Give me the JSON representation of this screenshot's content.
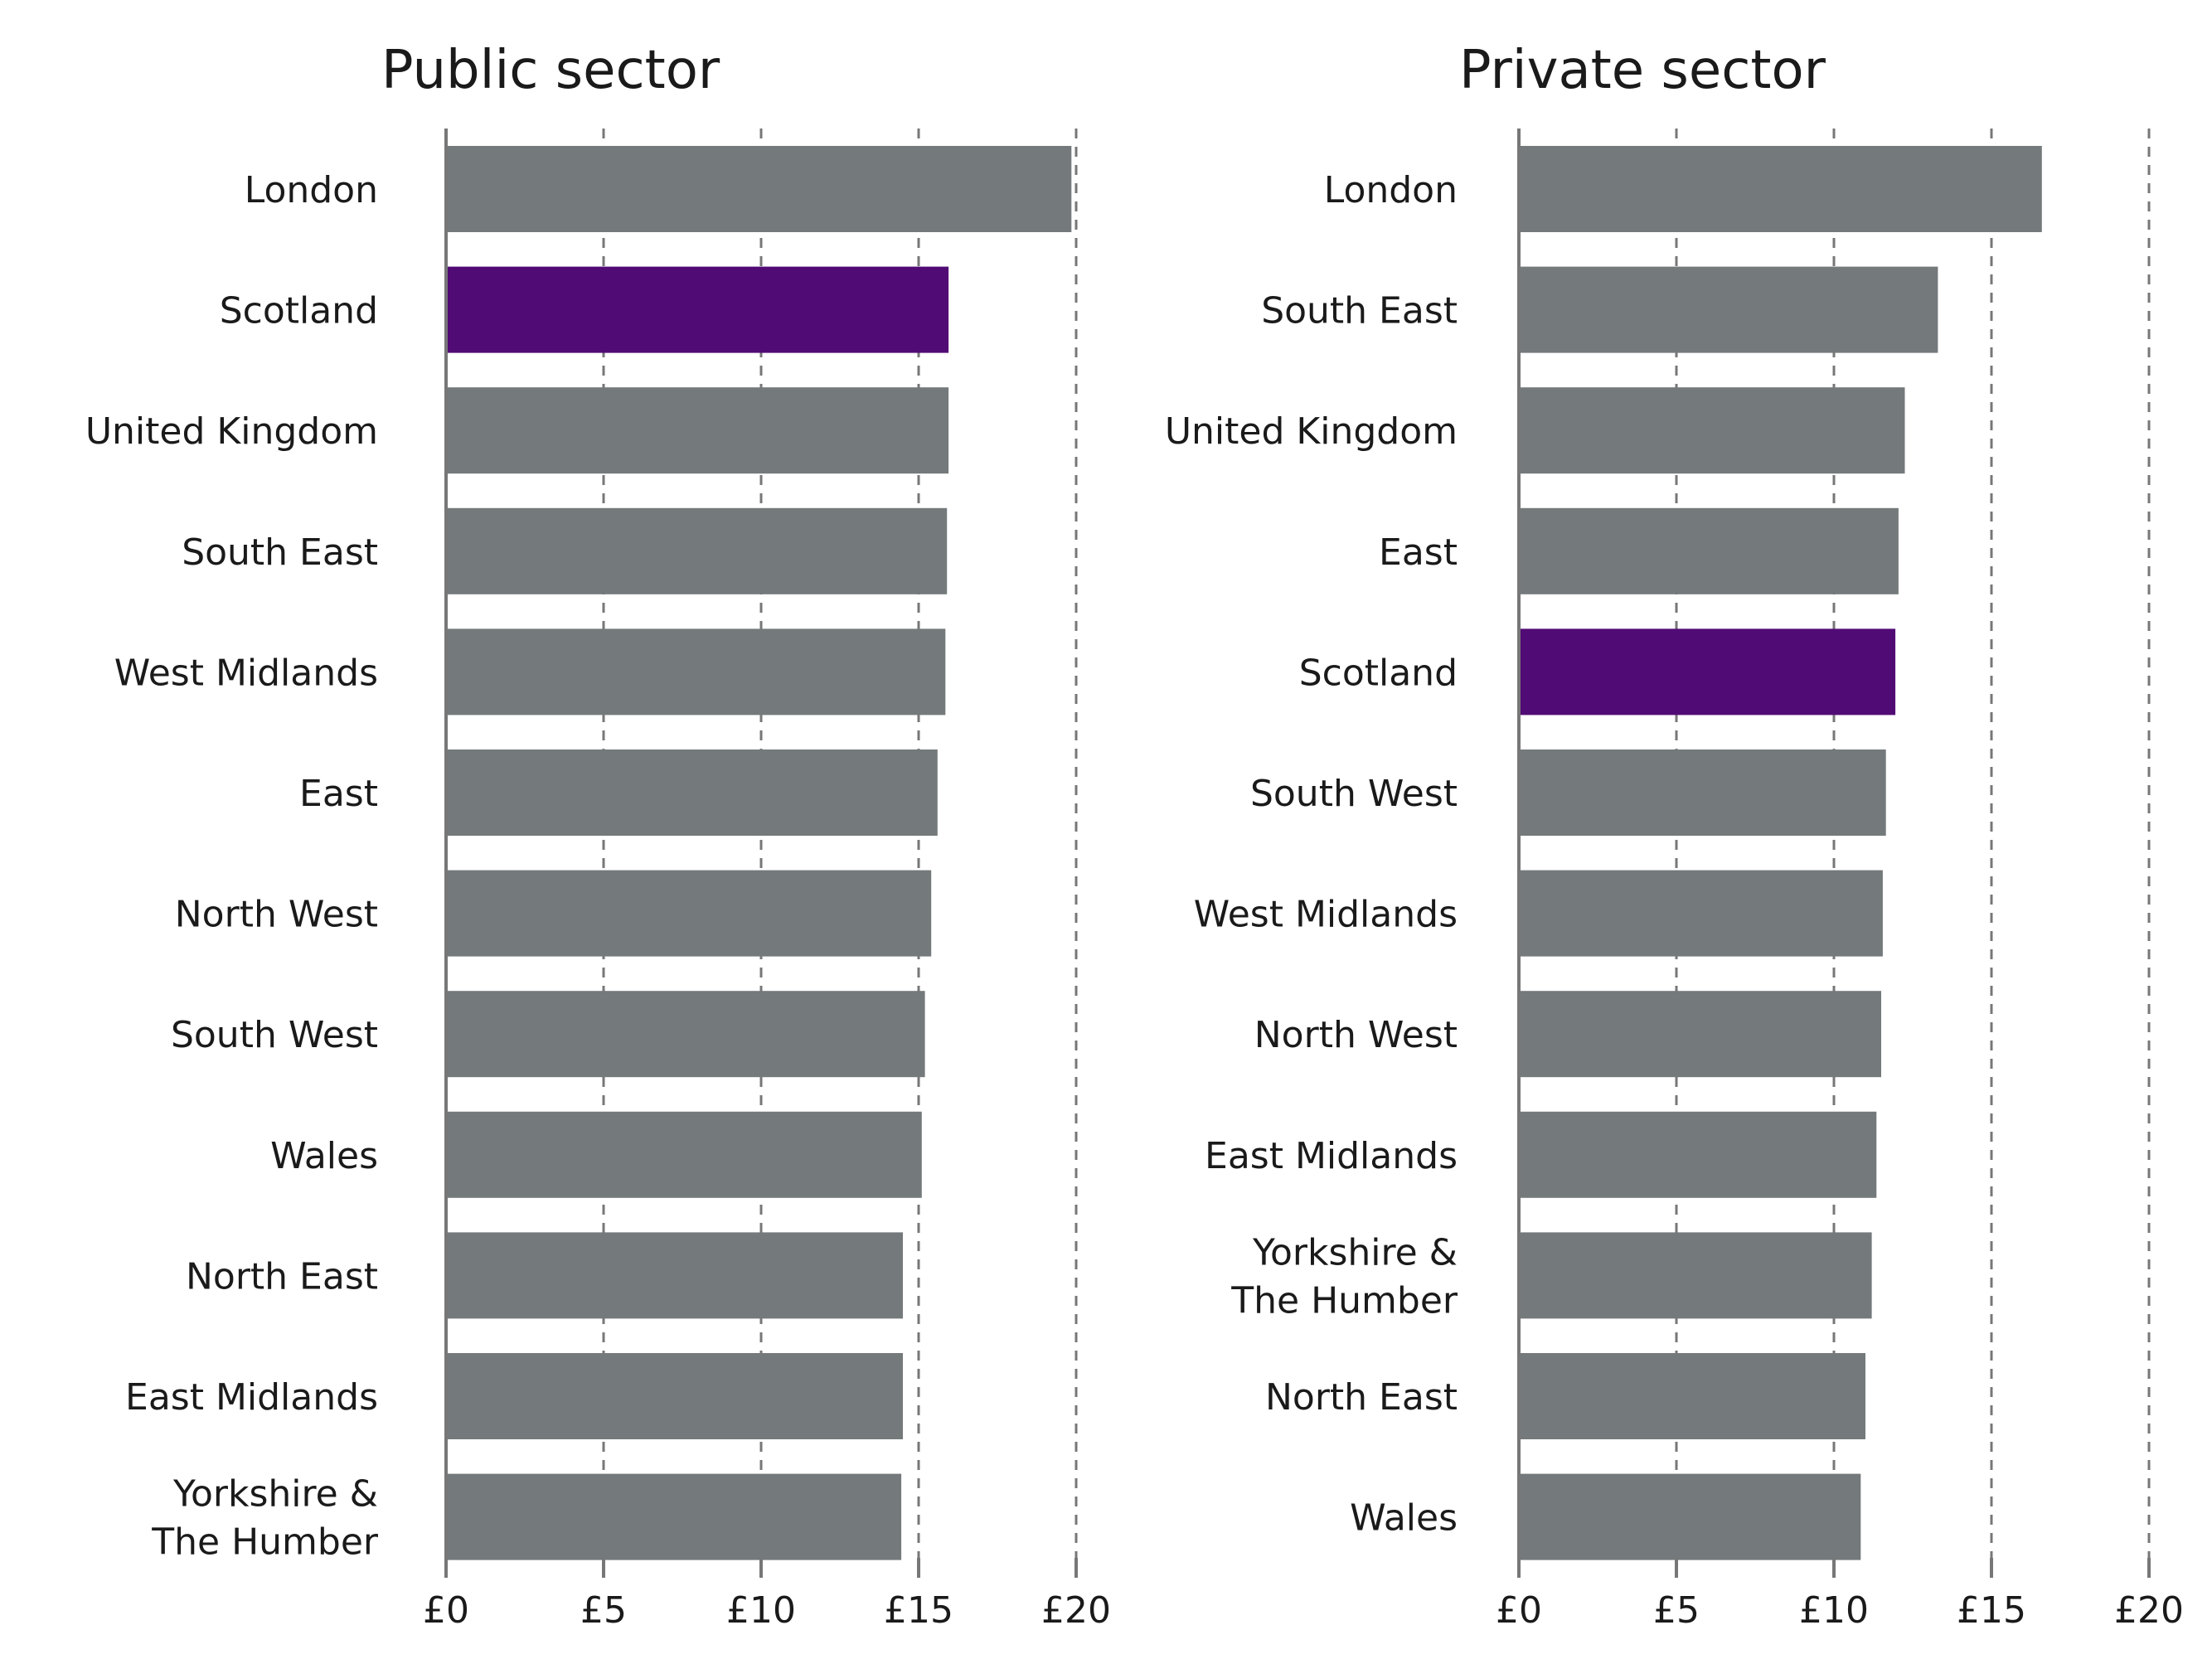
{
  "colors": {
    "bar_default": "#74797b",
    "bar_highlight": "#510b74",
    "grid": "#777777",
    "text": "#1a1a1a"
  },
  "chart_data": [
    {
      "type": "bar",
      "orientation": "horizontal",
      "title": "Public sector",
      "xlabel": "",
      "ylabel": "",
      "xlim": [
        0,
        20
      ],
      "x_ticks": [
        0,
        5,
        10,
        15,
        20
      ],
      "x_tick_labels": [
        "£0",
        "£5",
        "£10",
        "£15",
        "£20"
      ],
      "grid": true,
      "highlight": "Scotland",
      "categories": [
        [
          "London"
        ],
        [
          "Scotland"
        ],
        [
          "United Kingdom"
        ],
        [
          "South East"
        ],
        [
          "West Midlands"
        ],
        [
          "East"
        ],
        [
          "North West"
        ],
        [
          "South West"
        ],
        [
          "Wales"
        ],
        [
          "North East"
        ],
        [
          "East Midlands"
        ],
        [
          "Yorkshire &",
          "The Humber"
        ]
      ],
      "values": [
        19.85,
        15.95,
        15.95,
        15.9,
        15.85,
        15.6,
        15.4,
        15.2,
        15.1,
        14.5,
        14.5,
        14.45
      ]
    },
    {
      "type": "bar",
      "orientation": "horizontal",
      "title": "Private sector",
      "xlabel": "",
      "ylabel": "",
      "xlim": [
        0,
        20
      ],
      "x_ticks": [
        0,
        5,
        10,
        15,
        20
      ],
      "x_tick_labels": [
        "£0",
        "£5",
        "£10",
        "£15",
        "£20"
      ],
      "grid": true,
      "highlight": "Scotland",
      "categories": [
        [
          "London"
        ],
        [
          "South East"
        ],
        [
          "United Kingdom"
        ],
        [
          "East"
        ],
        [
          "Scotland"
        ],
        [
          "South West"
        ],
        [
          "West Midlands"
        ],
        [
          "North West"
        ],
        [
          "East Midlands"
        ],
        [
          "Yorkshire &",
          "The Humber"
        ],
        [
          "North East"
        ],
        [
          "Wales"
        ]
      ],
      "values": [
        16.6,
        13.3,
        12.25,
        12.05,
        11.95,
        11.65,
        11.55,
        11.5,
        11.35,
        11.2,
        11.0,
        10.85
      ]
    }
  ]
}
